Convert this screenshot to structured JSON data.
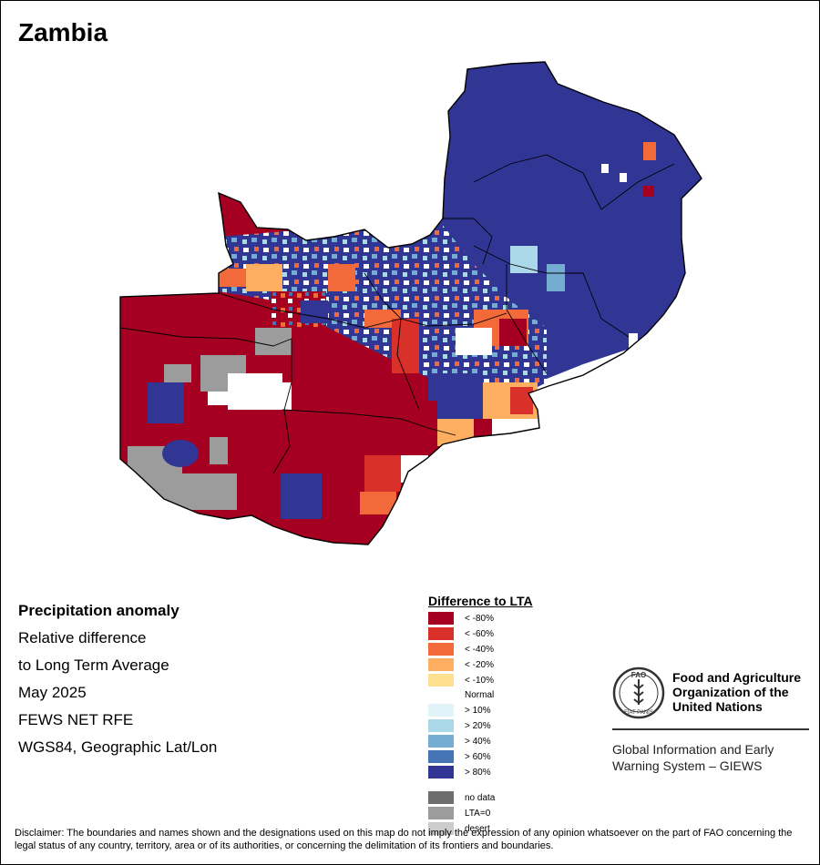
{
  "title": "Zambia",
  "info": {
    "heading": "Precipitation anomaly",
    "line1": "Relative difference",
    "line2": "to Long Term Average",
    "period": "May 2025",
    "source": "FEWS NET RFE",
    "projection": "WGS84, Geographic Lat/Lon"
  },
  "legend": {
    "title": "Difference to LTA",
    "classes": [
      {
        "label": "< -80%",
        "color": "#a50021"
      },
      {
        "label": "< -60%",
        "color": "#d9302a"
      },
      {
        "label": "< -40%",
        "color": "#f26a3a"
      },
      {
        "label": "< -20%",
        "color": "#fdae61"
      },
      {
        "label": "< -10%",
        "color": "#fee090"
      },
      {
        "label": "Normal",
        "color": "#ffffff"
      },
      {
        "label": "> 10%",
        "color": "#e0f3f8"
      },
      {
        "label": "> 20%",
        "color": "#abd9e9"
      },
      {
        "label": "> 40%",
        "color": "#74add1"
      },
      {
        "label": "> 60%",
        "color": "#4575b4"
      },
      {
        "label": "> 80%",
        "color": "#313695"
      }
    ],
    "extra": [
      {
        "label": "no data",
        "color": "#6e6e6e"
      },
      {
        "label": "LTA=0",
        "color": "#9c9c9c"
      },
      {
        "label": "desert",
        "color": "#cccccc"
      }
    ]
  },
  "fao": {
    "name_line1": "Food and Agriculture",
    "name_line2": "Organization of the",
    "name_line3": "United Nations",
    "logo_text": "FAO",
    "logo_motto": "FIAT PANIS",
    "giews_line1": "Global Information and Early",
    "giews_line2": "Warning System – GIEWS"
  },
  "disclaimer": "Disclaimer: The boundaries and names shown and the designations used on this map do not imply the expression of any opinion whatsoever on the part of FAO concerning the legal status of any country, territory, area or of its authorities, or concerning the delimitation of its frontiers and boundaries."
}
